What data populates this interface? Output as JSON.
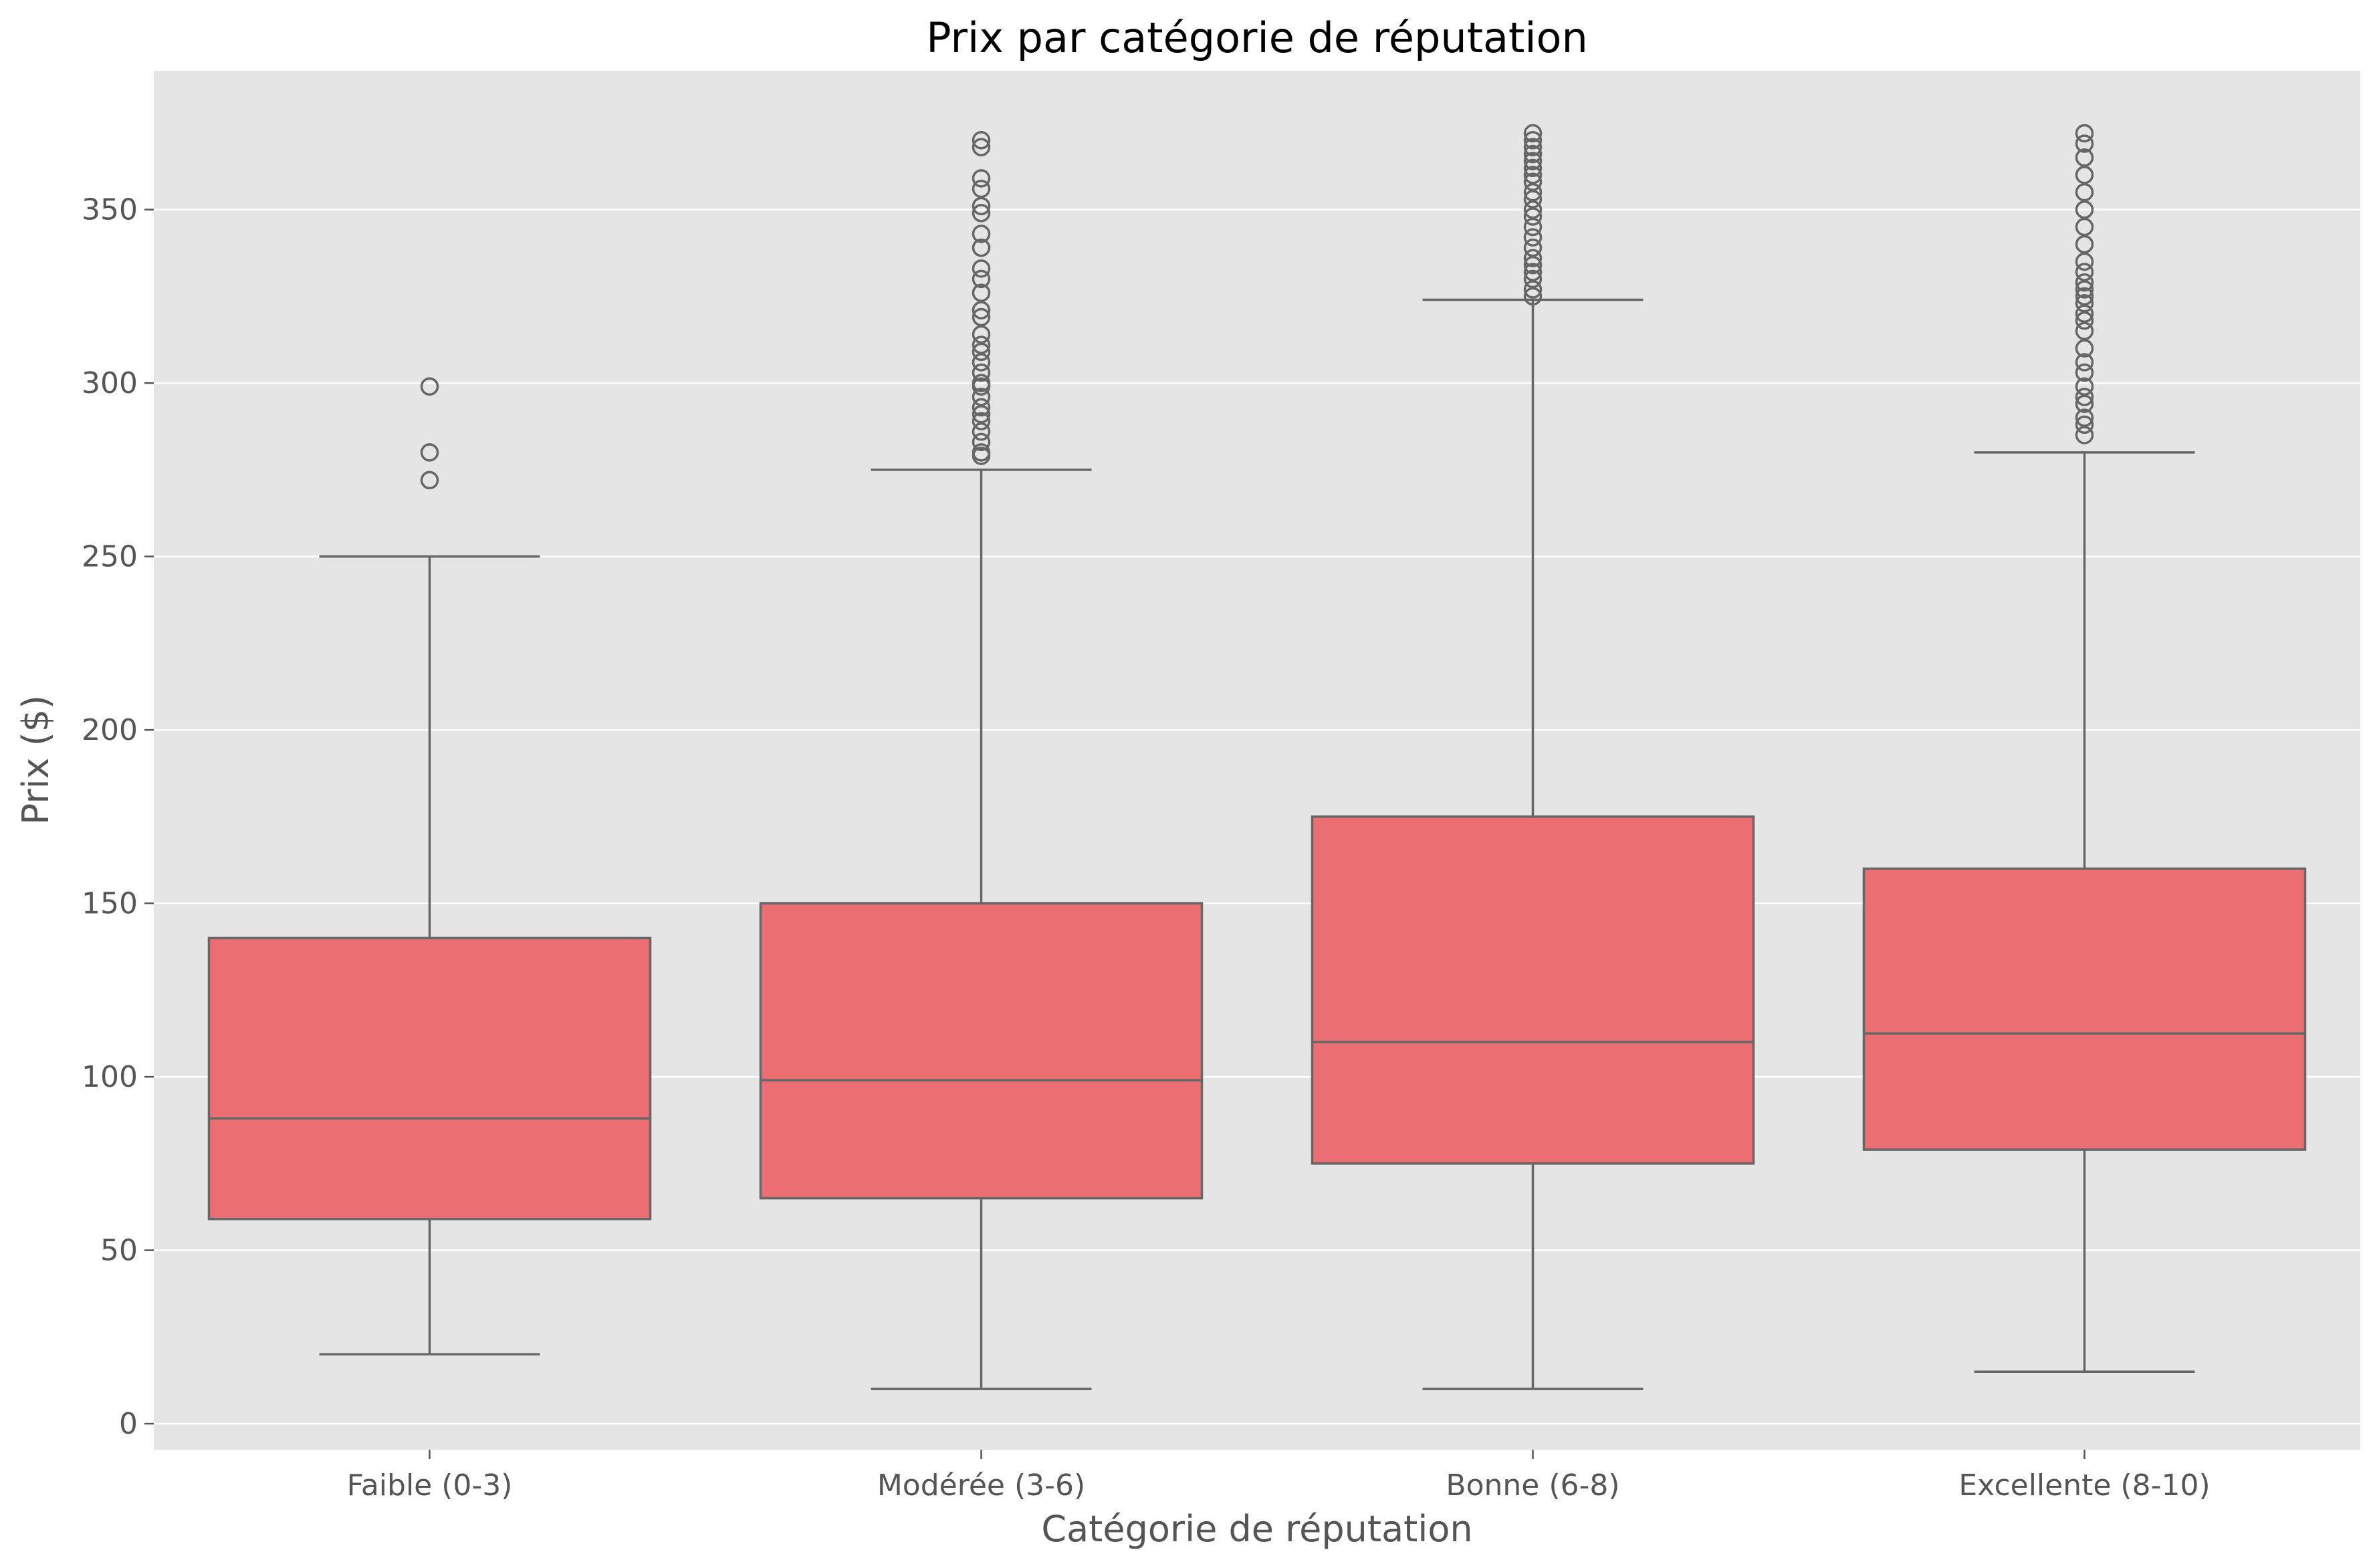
{
  "chart_data": {
    "type": "box",
    "title": "Prix par catégorie de réputation",
    "xlabel": "Catégorie de réputation",
    "ylabel": "Prix ($)",
    "ylim": [
      -7.5,
      390
    ],
    "yticks": [
      0,
      50,
      100,
      150,
      200,
      250,
      300,
      350
    ],
    "grid": true,
    "box_color": "#eb6e72",
    "line_color": "#666666",
    "background": "#e5e5e5",
    "categories": [
      "Faible (0-3)",
      "Modérée (3-6)",
      "Bonne (6-8)",
      "Excellente (8-10)"
    ],
    "boxes": [
      {
        "whisker_low": 20,
        "q1": 59,
        "median": 88,
        "q3": 140,
        "whisker_high": 250,
        "outliers": [
          272,
          280,
          299
        ]
      },
      {
        "whisker_low": 10,
        "q1": 65,
        "median": 99,
        "q3": 150,
        "whisker_high": 275,
        "outliers": [
          279,
          280,
          283,
          286,
          289,
          291,
          293,
          296,
          299,
          300,
          303,
          306,
          309,
          311,
          314,
          319,
          321,
          326,
          330,
          333,
          339,
          343,
          349,
          351,
          356,
          359,
          368,
          370
        ]
      },
      {
        "whisker_low": 10,
        "q1": 75,
        "median": 110,
        "q3": 175,
        "whisker_high": 324,
        "outliers": [
          325,
          327,
          330,
          332,
          334,
          336,
          339,
          342,
          345,
          348,
          350,
          353,
          355,
          358,
          360,
          362,
          364,
          366,
          368,
          370,
          372
        ]
      },
      {
        "whisker_low": 15,
        "q1": 79,
        "median": 112.5,
        "q3": 160,
        "whisker_high": 280,
        "outliers": [
          285,
          288,
          290,
          294,
          296,
          299,
          303,
          306,
          310,
          315,
          318,
          320,
          323,
          325,
          327,
          329,
          332,
          335,
          340,
          345,
          350,
          355,
          360,
          365,
          369,
          372
        ]
      }
    ]
  }
}
